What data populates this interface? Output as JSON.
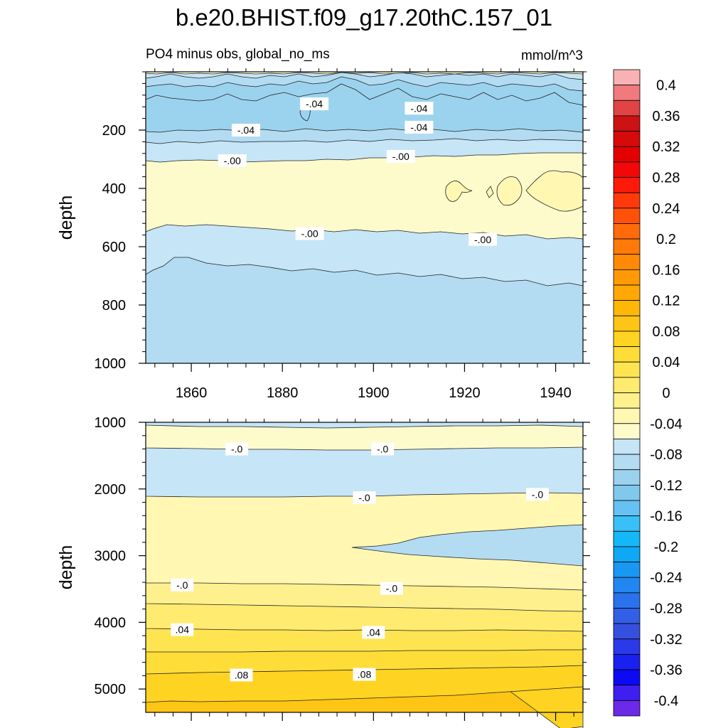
{
  "chart_data": {
    "type": "heatmap",
    "title": "b.e20.BHIST.f09_g17.20thC.157_01",
    "subtitle_left": "PO4 minus obs, global_no_ms",
    "units": "mmol/m^3",
    "x_range": [
      1850,
      1946
    ],
    "x_ticks": [
      1860,
      1880,
      1900,
      1920,
      1940
    ],
    "x_tick_labels": [
      "1860",
      "1880",
      "1900",
      "1920",
      "1940"
    ],
    "panels": [
      {
        "name": "upper",
        "ylabel": "depth",
        "y_range": [
          0,
          1000
        ],
        "y_ticks": [
          200,
          400,
          600,
          800,
          1000
        ],
        "y_tick_labels": [
          "200",
          "400",
          "600",
          "800",
          "1000"
        ],
        "contour_labels": [
          {
            "text": "-.04",
            "x": 1887,
            "depth": 110
          },
          {
            "text": "-.04",
            "x": 1910,
            "depth": 125
          },
          {
            "text": "-.04",
            "x": 1872,
            "depth": 200
          },
          {
            "text": "-.04",
            "x": 1910,
            "depth": 190
          },
          {
            "text": "-.00",
            "x": 1869,
            "depth": 305
          },
          {
            "text": "-.00",
            "x": 1906,
            "depth": 290
          },
          {
            "text": "-.00",
            "x": 1886,
            "depth": 555
          },
          {
            "text": "-.00",
            "x": 1924,
            "depth": 575
          }
        ]
      },
      {
        "name": "lower",
        "ylabel": "depth",
        "y_range": [
          1000,
          5350
        ],
        "y_ticks": [
          1000,
          2000,
          3000,
          4000,
          5000
        ],
        "y_tick_labels": [
          "1000",
          "2000",
          "3000",
          "4000",
          "5000"
        ],
        "contour_labels": [
          {
            "text": "-.0",
            "x": 1870,
            "depth": 1400
          },
          {
            "text": "-.0",
            "x": 1902,
            "depth": 1400
          },
          {
            "text": "-.0",
            "x": 1898,
            "depth": 2130
          },
          {
            "text": "-.0",
            "x": 1936,
            "depth": 2080
          },
          {
            "text": "-.0",
            "x": 1858,
            "depth": 3440
          },
          {
            "text": "-.0",
            "x": 1904,
            "depth": 3490
          },
          {
            "text": ".04",
            "x": 1858,
            "depth": 4110
          },
          {
            "text": ".04",
            "x": 1900,
            "depth": 4150
          },
          {
            "text": ".08",
            "x": 1871,
            "depth": 4790
          },
          {
            "text": ".08",
            "x": 1898,
            "depth": 4780
          }
        ]
      }
    ],
    "colorbar": {
      "min": -0.42,
      "max": 0.42,
      "step": 0.02,
      "tick_values": [
        0.4,
        0.36,
        0.32,
        0.28,
        0.24,
        0.2,
        0.16,
        0.12,
        0.08,
        0.04,
        0,
        -0.04,
        -0.08,
        -0.12,
        -0.16,
        -0.2,
        -0.24,
        -0.28,
        -0.32,
        -0.36,
        -0.4
      ],
      "tick_labels": [
        "0.4",
        "0.36",
        "0.32",
        "0.28",
        "0.24",
        "0.2",
        "0.16",
        "0.12",
        "0.08",
        "0.04",
        "0",
        "-0.04",
        "-0.08",
        "-0.12",
        "-0.16",
        "-0.2",
        "-0.24",
        "-0.28",
        "-0.32",
        "-0.36",
        "-0.4"
      ],
      "colors_top_to_bottom": [
        "#f9b2b4",
        "#f07a7e",
        "#e04444",
        "#cc1212",
        "#d70a0a",
        "#e30000",
        "#f20808",
        "#fe1a0a",
        "#ff3a08",
        "#ff5208",
        "#ff6a0a",
        "#ff7a08",
        "#ff8a06",
        "#ff9a06",
        "#ffa806",
        "#ffb808",
        "#ffc514",
        "#ffd322",
        "#ffdd38",
        "#ffe452",
        "#ffeb70",
        "#fff08e",
        "#fff7b2",
        "#fdfbcc",
        "#c6e5f6",
        "#b3dcf3",
        "#9bd3ef",
        "#81c9ec",
        "#65c2f2",
        "#38c0f7",
        "#14b8f7",
        "#0ea8f5",
        "#1898f3",
        "#2186f0",
        "#2972ec",
        "#315fe6",
        "#3650de",
        "#2a3ae8",
        "#1a20f0",
        "#0c0af5",
        "#3f1ef0",
        "#6a2ae8"
      ]
    }
  }
}
